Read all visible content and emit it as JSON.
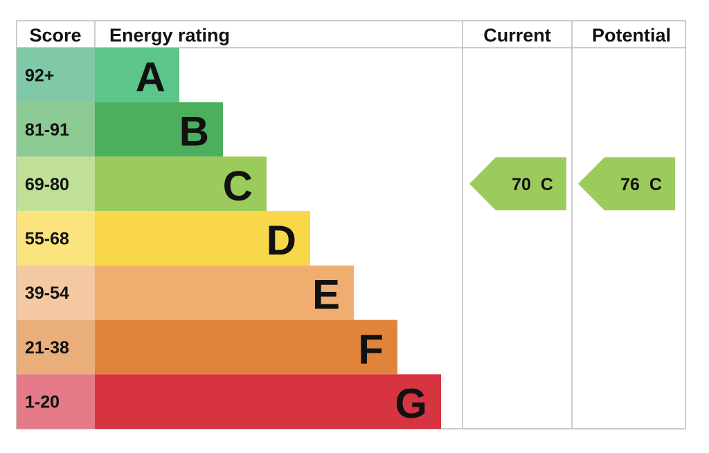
{
  "header": {
    "score": "Score",
    "rating": "Energy rating",
    "current": "Current",
    "potential": "Potential"
  },
  "bands": [
    {
      "score": "92+",
      "letter": "A",
      "color": "#5bc58a",
      "score_color": "#80c9a8"
    },
    {
      "score": "81-91",
      "letter": "B",
      "color": "#4caf5e",
      "score_color": "#8cca93"
    },
    {
      "score": "69-80",
      "letter": "C",
      "color": "#9bcb5b",
      "score_color": "#bfe096"
    },
    {
      "score": "55-68",
      "letter": "D",
      "color": "#f8d74a",
      "score_color": "#fbe47e"
    },
    {
      "score": "39-54",
      "letter": "E",
      "color": "#efae70",
      "score_color": "#f4c9a2"
    },
    {
      "score": "21-38",
      "letter": "F",
      "color": "#e0843c",
      "score_color": "#e9ae7a"
    },
    {
      "score": "1-20",
      "letter": "G",
      "color": "#d73442",
      "score_color": "#e47a88"
    }
  ],
  "current": {
    "value": 70,
    "band": "C"
  },
  "potential": {
    "value": 76,
    "band": "C"
  }
}
